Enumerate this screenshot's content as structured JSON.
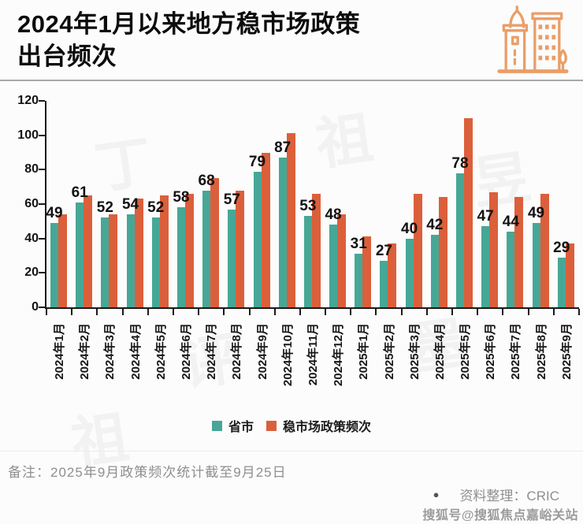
{
  "header": {
    "title_line1": "2024年1月以来地方稳市场政策",
    "title_line2": "出台频次"
  },
  "chart_data": {
    "type": "bar",
    "title": "2024年1月以来地方稳市场政策出台频次",
    "xlabel": "",
    "ylabel": "",
    "ylim": [
      0,
      120
    ],
    "ytick_step": 20,
    "grid": false,
    "legend_position": "bottom",
    "categories": [
      "2024年1月",
      "2024年2月",
      "2024年3月",
      "2024年4月",
      "2024年5月",
      "2024年6月",
      "2024年7月",
      "2024年8月",
      "2024年9月",
      "2024年10月",
      "2024年11月",
      "2024年12月",
      "2025年1月",
      "2025年2月",
      "2025年3月",
      "2025年4月",
      "2025年5月",
      "2025年6月",
      "2025年7月",
      "2025年8月",
      "2025年9月"
    ],
    "series": [
      {
        "name": "省市",
        "color": "#47A796",
        "data_labels": true,
        "values": [
          49,
          61,
          52,
          54,
          52,
          58,
          68,
          57,
          79,
          87,
          53,
          48,
          31,
          27,
          40,
          42,
          78,
          47,
          44,
          49,
          29
        ]
      },
      {
        "name": "稳市场政策频次",
        "color": "#DC5F3B",
        "data_labels": false,
        "values": [
          54,
          65,
          54,
          63,
          65,
          66,
          75,
          68,
          90,
          101,
          66,
          54,
          41,
          37,
          66,
          64,
          110,
          67,
          64,
          66,
          37
        ]
      }
    ]
  },
  "footer": {
    "note": "备注：2025年9月政策频次统计截至9月25日",
    "source_bullet": "●",
    "source_label": "资料整理：CRIC",
    "watermark": "搜狐号@搜狐焦点嘉峪关站"
  },
  "colors": {
    "series_provinces": "#47A796",
    "series_policy": "#DC5F3B",
    "title_text": "#0C0C0C",
    "axis": "#1A1A1A",
    "note_gray": "#8F8F8F",
    "icon_orange": "#EA9E68",
    "watermark_gray": "#9B9B9B"
  },
  "background_watermark": {
    "chars": [
      "丁",
      "祖",
      "昱",
      "评",
      "墨",
      "祖"
    ]
  }
}
